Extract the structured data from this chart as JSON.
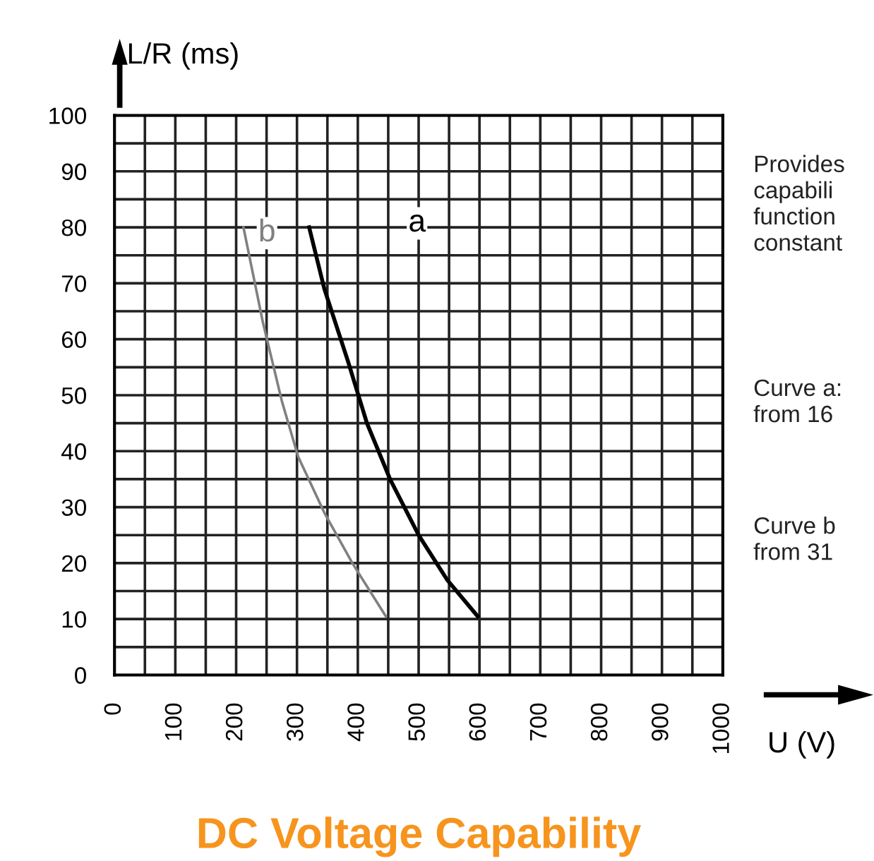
{
  "chart_data": {
    "type": "line",
    "title": "DC Voltage Capability",
    "xlabel": "U (V)",
    "ylabel": "L/R (ms)",
    "xlim": [
      0,
      1000
    ],
    "ylim": [
      0,
      100
    ],
    "xticks": [
      0,
      {
        "value": 50,
        "label": null
      },
      100,
      {
        "value": 150,
        "label": null
      },
      200,
      {
        "value": 250,
        "label": null
      },
      300,
      {
        "value": 350,
        "label": null
      },
      400,
      {
        "value": 450,
        "label": null
      },
      500,
      {
        "value": 550,
        "label": null
      },
      600,
      {
        "value": 650,
        "label": null
      },
      700,
      {
        "value": 750,
        "label": null
      },
      800,
      {
        "value": 850,
        "label": null
      },
      900,
      {
        "value": 950,
        "label": null
      },
      1000
    ],
    "yticks": [
      0,
      {
        "value": 5,
        "label": null
      },
      10,
      {
        "value": 15,
        "label": null
      },
      20,
      {
        "value": 25,
        "label": null
      },
      30,
      {
        "value": 35,
        "label": null
      },
      40,
      {
        "value": 45,
        "label": null
      },
      50,
      {
        "value": 55,
        "label": null
      },
      60,
      {
        "value": 65,
        "label": null
      },
      70,
      {
        "value": 75,
        "label": null
      },
      80,
      {
        "value": 85,
        "label": null
      },
      90,
      {
        "value": 95,
        "label": null
      },
      100
    ],
    "grid": true,
    "marker": "none",
    "line_style": "solid",
    "series": [
      {
        "name": "a",
        "color": "#000000",
        "x": [
          320,
          345,
          384,
          415,
          453,
          500,
          547,
          597
        ],
        "values": [
          80,
          69,
          56,
          45,
          35,
          25,
          17,
          10.5
        ]
      },
      {
        "name": "b",
        "color": "#808080",
        "x": [
          212,
          244,
          275,
          302,
          345,
          391,
          446
        ],
        "values": [
          80,
          63,
          49,
          39,
          29,
          20,
          10.5
        ]
      }
    ],
    "annotations": [
      "Provides\ncapabili\nfunction\nconstant",
      "Curve a:\nfrom 16",
      "Curve b\nfrom 31"
    ]
  }
}
